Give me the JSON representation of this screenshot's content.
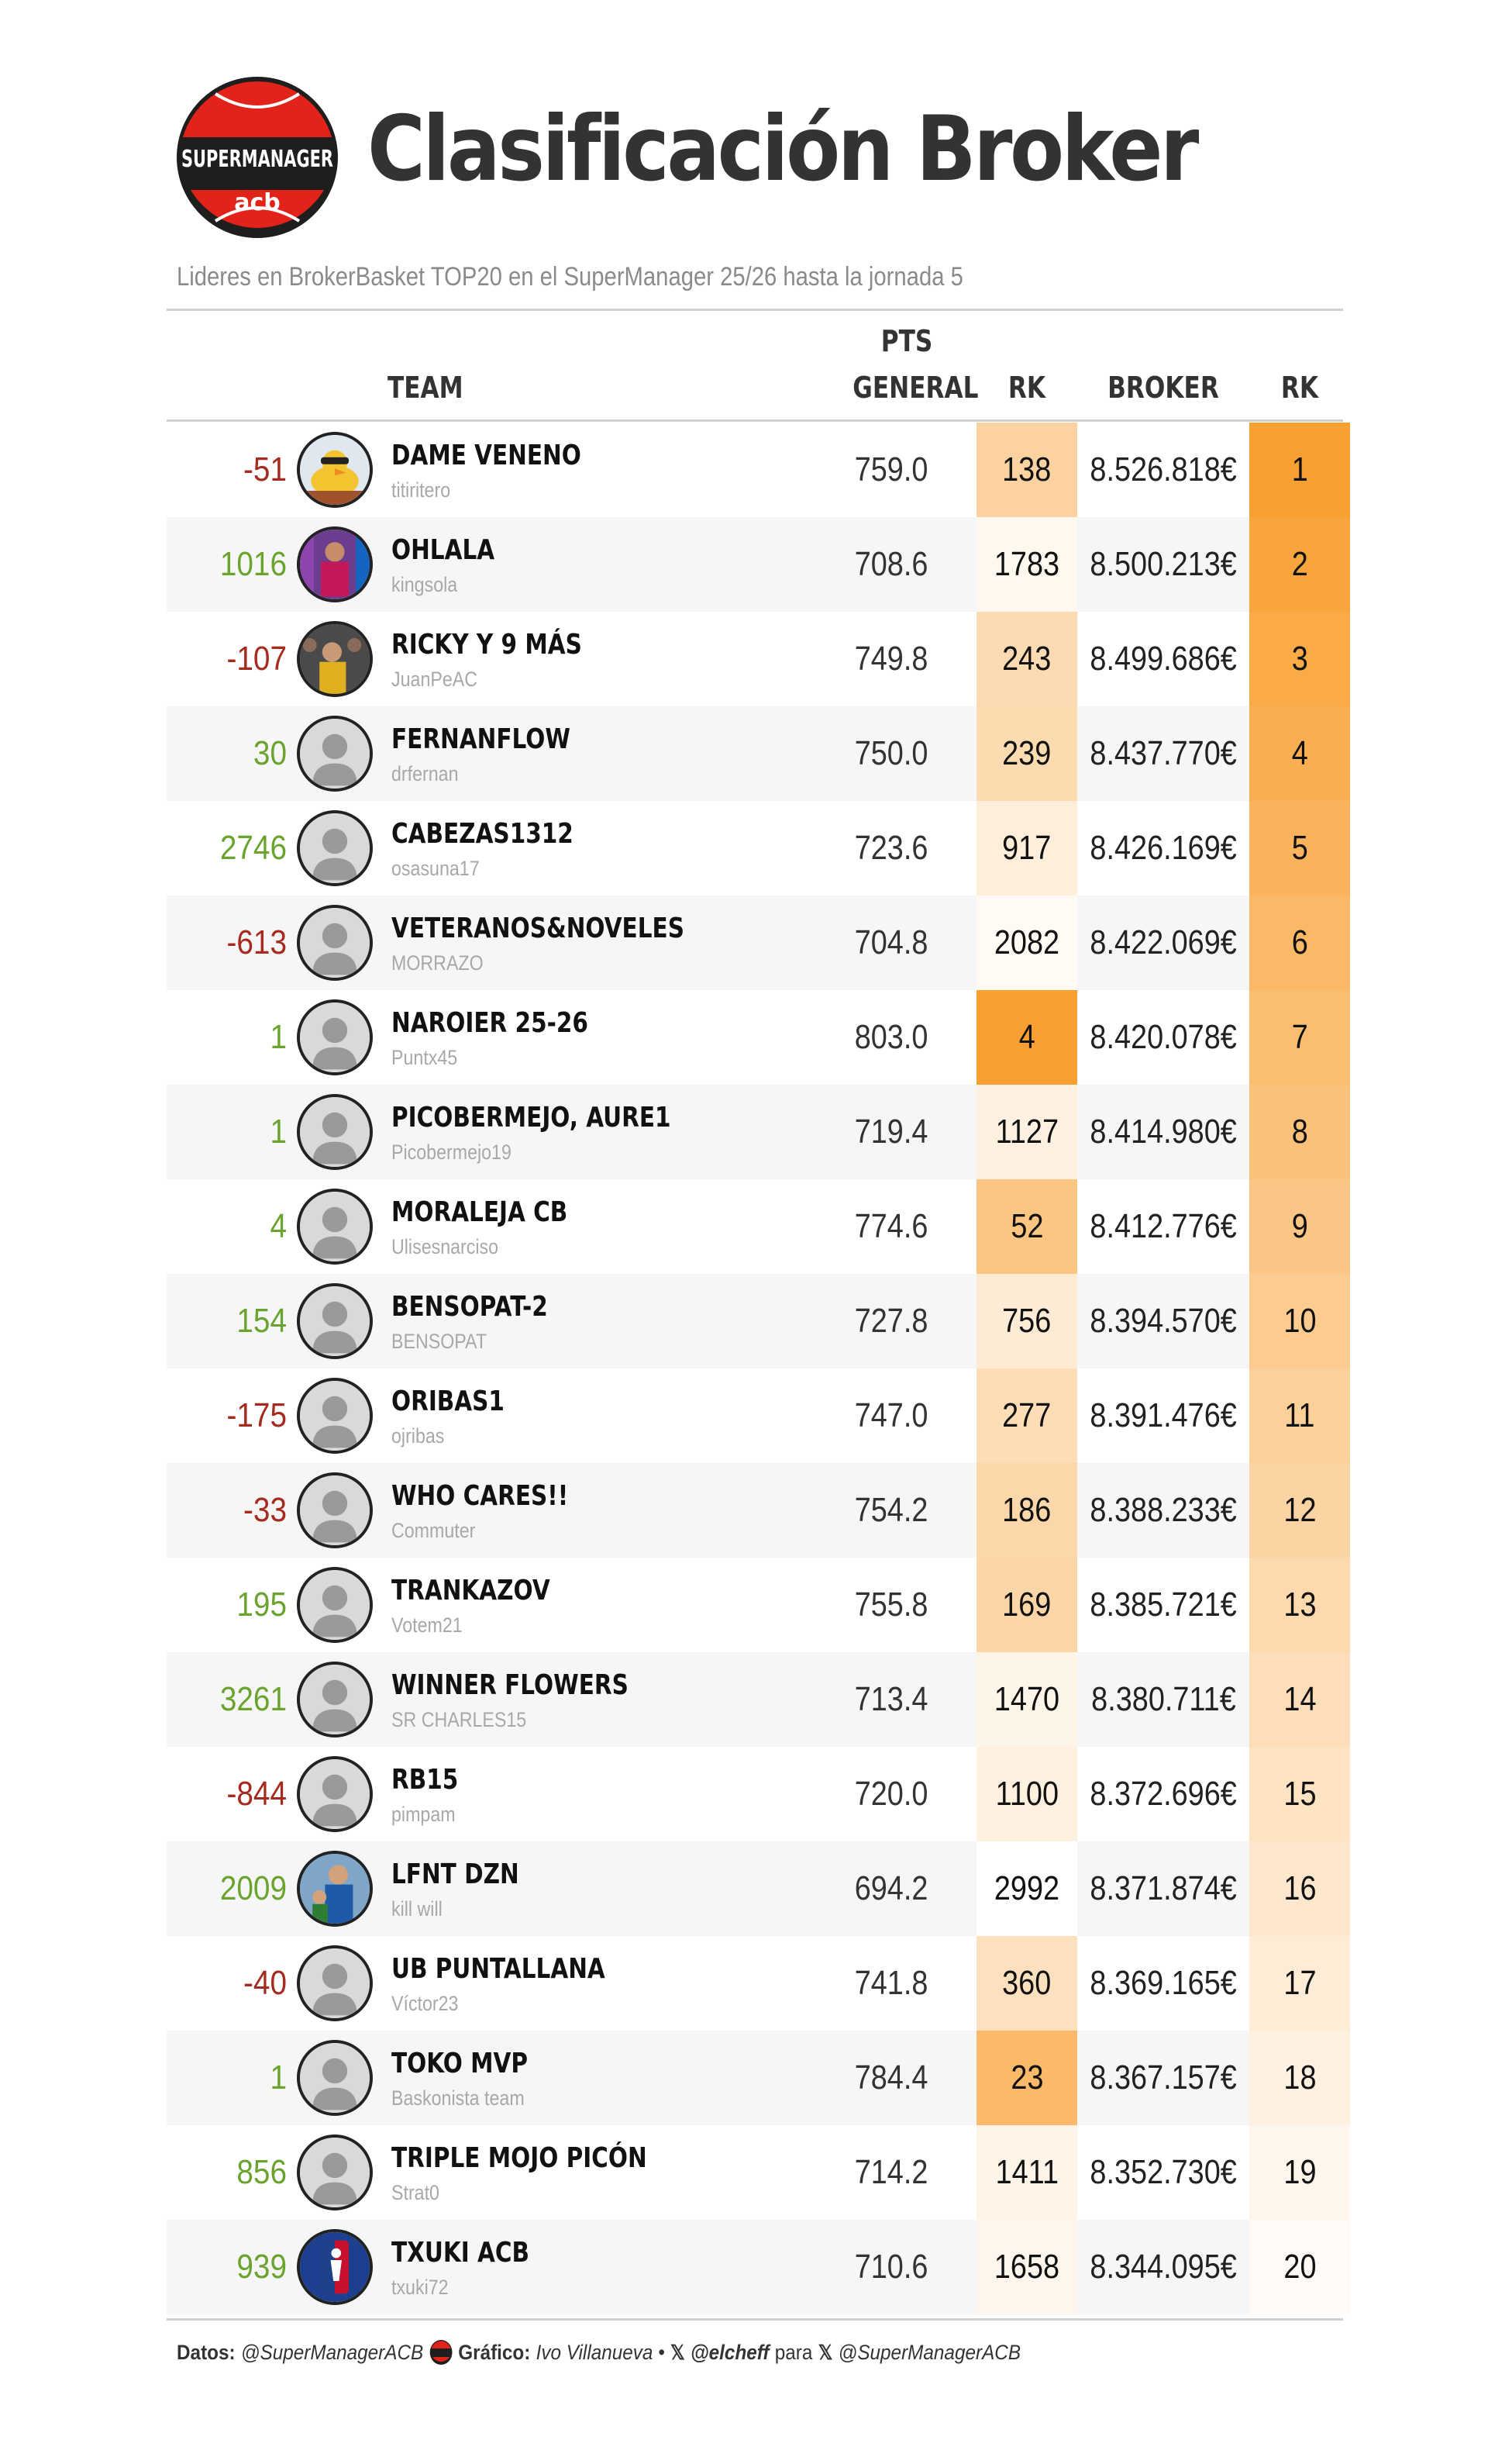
{
  "header": {
    "logo_text_top": "SUPERMANAGER",
    "logo_text_bottom": "acb",
    "title": "Clasificación Broker",
    "subtitle": "Lideres en BrokerBasket TOP20 en el SuperManager 25/26 hasta la jornada 5"
  },
  "columns": {
    "team": "TEAM",
    "pts_line1": "PTS",
    "pts_line2": "GENERAL",
    "rk1": "RK",
    "broker": "BROKER",
    "rk2": "RK"
  },
  "colors": {
    "positive": "#6aa42e",
    "negative": "#a52a1f",
    "rank_heat_max": "#f9a033",
    "rank_heat_min": "#ffffff",
    "brand_red": "#e2231a"
  },
  "rows": [
    {
      "change": "-51",
      "dir": "down",
      "team": "DAME VENENO",
      "user": "titiritero",
      "avatar": "duck",
      "pts": "759.0",
      "rk": "138",
      "broker": "8.526.818€",
      "broker_rk": "1"
    },
    {
      "change": "1016",
      "dir": "up",
      "team": "OHLALA",
      "user": "kingsola",
      "avatar": "photo-player",
      "pts": "708.6",
      "rk": "1783",
      "broker": "8.500.213€",
      "broker_rk": "2"
    },
    {
      "change": "-107",
      "dir": "down",
      "team": "RICKY Y 9 MÁS",
      "user": "JuanPeAC",
      "avatar": "photo-crowd",
      "pts": "749.8",
      "rk": "243",
      "broker": "8.499.686€",
      "broker_rk": "3"
    },
    {
      "change": "30",
      "dir": "up",
      "team": "FERNANFLOW",
      "user": "drfernan",
      "avatar": "default",
      "pts": "750.0",
      "rk": "239",
      "broker": "8.437.770€",
      "broker_rk": "4"
    },
    {
      "change": "2746",
      "dir": "up",
      "team": "CABEZAS1312",
      "user": "osasuna17",
      "avatar": "default",
      "pts": "723.6",
      "rk": "917",
      "broker": "8.426.169€",
      "broker_rk": "5"
    },
    {
      "change": "-613",
      "dir": "down",
      "team": "VETERANOS&NOVELES",
      "user": "MORRAZO",
      "avatar": "default",
      "pts": "704.8",
      "rk": "2082",
      "broker": "8.422.069€",
      "broker_rk": "6"
    },
    {
      "change": "1",
      "dir": "up",
      "team": "NAROIER 25-26",
      "user": "Puntx45",
      "avatar": "default",
      "pts": "803.0",
      "rk": "4",
      "broker": "8.420.078€",
      "broker_rk": "7"
    },
    {
      "change": "1",
      "dir": "up",
      "team": "PICOBERMEJO, AURE1",
      "user": "Picobermejo19",
      "avatar": "default",
      "pts": "719.4",
      "rk": "1127",
      "broker": "8.414.980€",
      "broker_rk": "8"
    },
    {
      "change": "4",
      "dir": "up",
      "team": "MORALEJA CB",
      "user": "Ulisesnarciso",
      "avatar": "default",
      "pts": "774.6",
      "rk": "52",
      "broker": "8.412.776€",
      "broker_rk": "9"
    },
    {
      "change": "154",
      "dir": "up",
      "team": "BENSOPAT-2",
      "user": "BENSOPAT",
      "avatar": "default",
      "pts": "727.8",
      "rk": "756",
      "broker": "8.394.570€",
      "broker_rk": "10"
    },
    {
      "change": "-175",
      "dir": "down",
      "team": "ORIBAS1",
      "user": "ojribas",
      "avatar": "default",
      "pts": "747.0",
      "rk": "277",
      "broker": "8.391.476€",
      "broker_rk": "11"
    },
    {
      "change": "-33",
      "dir": "down",
      "team": "WHO CARES!!",
      "user": "Commuter",
      "avatar": "default",
      "pts": "754.2",
      "rk": "186",
      "broker": "8.388.233€",
      "broker_rk": "12"
    },
    {
      "change": "195",
      "dir": "up",
      "team": "TRANKAZOV",
      "user": "Votem21",
      "avatar": "default",
      "pts": "755.8",
      "rk": "169",
      "broker": "8.385.721€",
      "broker_rk": "13"
    },
    {
      "change": "3261",
      "dir": "up",
      "team": "WINNER FLOWERS",
      "user": "SR CHARLES15",
      "avatar": "default",
      "pts": "713.4",
      "rk": "1470",
      "broker": "8.380.711€",
      "broker_rk": "14"
    },
    {
      "change": "-844",
      "dir": "down",
      "team": "RB15",
      "user": "pimpam",
      "avatar": "default",
      "pts": "720.0",
      "rk": "1100",
      "broker": "8.372.696€",
      "broker_rk": "15"
    },
    {
      "change": "2009",
      "dir": "up",
      "team": "LFNT DZN",
      "user": "kill will",
      "avatar": "photo-family",
      "pts": "694.2",
      "rk": "2992",
      "broker": "8.371.874€",
      "broker_rk": "16"
    },
    {
      "change": "-40",
      "dir": "down",
      "team": "UB PUNTALLANA",
      "user": "Víctor23",
      "avatar": "default",
      "pts": "741.8",
      "rk": "360",
      "broker": "8.369.165€",
      "broker_rk": "17"
    },
    {
      "change": "1",
      "dir": "up",
      "team": "TOKO MVP",
      "user": "Baskonista team",
      "avatar": "default",
      "pts": "784.4",
      "rk": "23",
      "broker": "8.367.157€",
      "broker_rk": "18"
    },
    {
      "change": "856",
      "dir": "up",
      "team": "TRIPLE MOJO PICÓN",
      "user": "Strat0",
      "avatar": "default",
      "pts": "714.2",
      "rk": "1411",
      "broker": "8.352.730€",
      "broker_rk": "19"
    },
    {
      "change": "939",
      "dir": "up",
      "team": "TXUKI ACB",
      "user": "txuki72",
      "avatar": "nba-logo",
      "pts": "710.6",
      "rk": "1658",
      "broker": "8.344.095€",
      "broker_rk": "20"
    }
  ],
  "footer": {
    "datos_label": "Datos:",
    "datos_value": "@SuperManagerACB",
    "grafico_label": "Gráfico:",
    "grafico_author": "Ivo Villanueva •",
    "x_handle_1": "@elcheff",
    "para": "para",
    "x_handle_2": "@SuperManagerACB",
    "x_icon": "𝕏"
  }
}
